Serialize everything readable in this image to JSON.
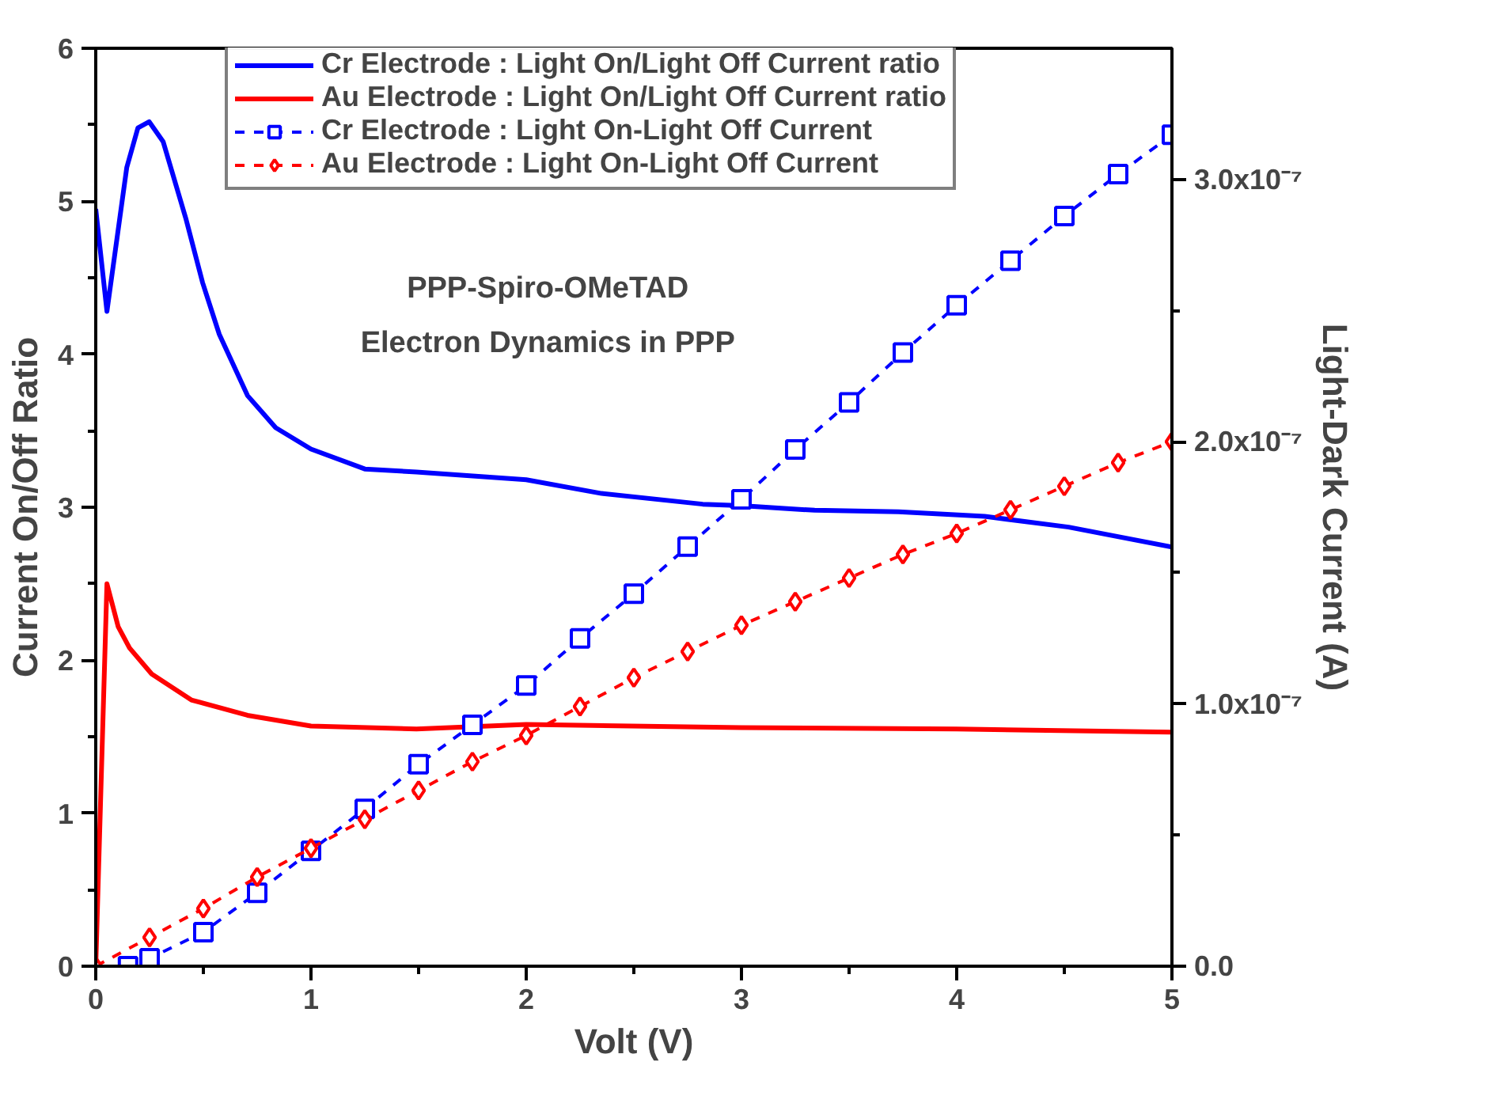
{
  "chart_data": {
    "type": "line",
    "xlabel": "Volt (V)",
    "ylabel": "Current On/Off Ratio",
    "y2label": "Light-Dark Current (A)",
    "annotations": [
      "PPP-Spiro-OMeTAD",
      "Electron Dynamics in PPP"
    ],
    "xlim": [
      0,
      5
    ],
    "xticks": [
      0,
      1,
      2,
      3,
      4,
      5
    ],
    "ylim": [
      0,
      6
    ],
    "yticks": [
      0,
      1,
      2,
      3,
      4,
      5,
      6
    ],
    "y2lim": [
      0,
      3.5e-07
    ],
    "y2ticks": [
      {
        "value": 0,
        "label": "0.0"
      },
      {
        "value": 1e-07,
        "label": "1.0x10⁻⁷"
      },
      {
        "value": 2e-07,
        "label": "2.0x10⁻⁷"
      },
      {
        "value": 3e-07,
        "label": "3.0x10⁻⁷"
      }
    ],
    "grid": false,
    "legend": "top",
    "series": [
      {
        "name": "Cr Electrode : Light On/Light Off Current ratio",
        "color": "#0000ff",
        "marker": "none",
        "line_style": "solid",
        "x": [
          0,
          0.052,
          0.144,
          0.196,
          0.248,
          0.313,
          0.418,
          0.496,
          0.574,
          0.705,
          0.836,
          1.0,
          1.25,
          1.49,
          2.0,
          2.35,
          2.82,
          3.0,
          3.34,
          3.73,
          4.13,
          4.52,
          5.0
        ],
        "values": [
          4.95,
          4.28,
          5.22,
          5.48,
          5.52,
          5.39,
          4.89,
          4.47,
          4.13,
          3.73,
          3.52,
          3.38,
          3.25,
          3.23,
          3.18,
          3.09,
          3.02,
          3.01,
          2.98,
          2.97,
          2.94,
          2.87,
          2.74
        ]
      },
      {
        "name": "Au Electrode : Light On/Light Off Current ratio",
        "color": "#ff0000",
        "marker": "none",
        "line_style": "solid",
        "x": [
          0,
          0.052,
          0.104,
          0.157,
          0.26,
          0.444,
          0.705,
          1.0,
          1.49,
          2.0,
          3.0,
          4.0,
          5.0
        ],
        "values": [
          0,
          2.5,
          2.22,
          2.08,
          1.91,
          1.74,
          1.64,
          1.57,
          1.55,
          1.58,
          1.56,
          1.55,
          1.53
        ]
      },
      {
        "name": "Cr Electrode : Light On-Light Off Current",
        "color": "#0000ff",
        "marker": "square",
        "line_style": "dashed",
        "axis": "y2",
        "x": [
          0.15,
          0.25,
          0.5,
          0.75,
          1,
          1.25,
          1.5,
          1.75,
          2,
          2.25,
          2.5,
          2.75,
          3,
          3.25,
          3.5,
          3.75,
          4,
          4.25,
          4.5,
          4.75,
          5
        ],
        "values": [
          0,
          3e-09,
          1.3e-08,
          2.8e-08,
          4.4e-08,
          6e-08,
          7.7e-08,
          9.2e-08,
          1.07e-07,
          1.25e-07,
          1.42e-07,
          1.6e-07,
          1.78e-07,
          1.97e-07,
          2.15e-07,
          2.34e-07,
          2.52e-07,
          2.69e-07,
          2.86e-07,
          3.02e-07,
          3.17e-07
        ]
      },
      {
        "name": "Au Electrode : Light On-Light Off Current",
        "color": "#ff0000",
        "marker": "diamond",
        "line_style": "dashed",
        "axis": "y2",
        "x": [
          0,
          0.25,
          0.5,
          0.75,
          1,
          1.25,
          1.5,
          1.75,
          2,
          2.25,
          2.5,
          2.75,
          3,
          3.25,
          3.5,
          3.75,
          4,
          4.25,
          4.5,
          4.75,
          5
        ],
        "values": [
          0,
          1.1e-08,
          2.2e-08,
          3.4e-08,
          4.5e-08,
          5.6e-08,
          6.7e-08,
          7.8e-08,
          8.8e-08,
          9.9e-08,
          1.1e-07,
          1.2e-07,
          1.3e-07,
          1.39e-07,
          1.48e-07,
          1.57e-07,
          1.65e-07,
          1.74e-07,
          1.83e-07,
          1.92e-07,
          2e-07
        ]
      }
    ]
  }
}
